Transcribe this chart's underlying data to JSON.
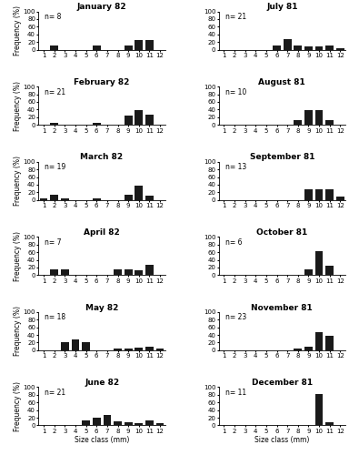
{
  "panels": [
    {
      "title": "January 82",
      "n": 8,
      "values": [
        0,
        12,
        0,
        0,
        0,
        12,
        0,
        0,
        12,
        25,
        25,
        0
      ]
    },
    {
      "title": "July 81",
      "n": 21,
      "values": [
        0,
        0,
        0,
        0,
        0,
        12,
        28,
        12,
        10,
        8,
        12,
        5
      ]
    },
    {
      "title": "February 82",
      "n": 21,
      "values": [
        0,
        5,
        0,
        0,
        0,
        5,
        0,
        0,
        25,
        38,
        28,
        0
      ]
    },
    {
      "title": "August 81",
      "n": 10,
      "values": [
        0,
        0,
        0,
        0,
        0,
        0,
        0,
        12,
        38,
        38,
        12,
        0
      ]
    },
    {
      "title": "March 82",
      "n": 19,
      "values": [
        5,
        15,
        5,
        0,
        0,
        5,
        0,
        0,
        15,
        38,
        12,
        0
      ]
    },
    {
      "title": "September 81",
      "n": 13,
      "values": [
        0,
        0,
        0,
        0,
        0,
        0,
        0,
        0,
        28,
        28,
        28,
        10
      ]
    },
    {
      "title": "April 82",
      "n": 7,
      "values": [
        0,
        15,
        15,
        0,
        0,
        0,
        0,
        15,
        15,
        12,
        28,
        0
      ]
    },
    {
      "title": "October 81",
      "n": 6,
      "values": [
        0,
        0,
        0,
        0,
        0,
        0,
        0,
        0,
        15,
        62,
        25,
        0
      ]
    },
    {
      "title": "May 82",
      "n": 18,
      "values": [
        0,
        0,
        22,
        28,
        22,
        0,
        0,
        5,
        5,
        8,
        10,
        5
      ]
    },
    {
      "title": "November 81",
      "n": 23,
      "values": [
        0,
        0,
        0,
        0,
        0,
        0,
        0,
        5,
        9,
        48,
        38,
        0
      ]
    },
    {
      "title": "June 82",
      "n": 21,
      "values": [
        0,
        0,
        0,
        0,
        12,
        20,
        28,
        10,
        8,
        5,
        12,
        5
      ]
    },
    {
      "title": "December 81",
      "n": 11,
      "values": [
        0,
        0,
        0,
        0,
        0,
        0,
        0,
        0,
        0,
        82,
        9,
        0
      ]
    }
  ],
  "x_labels": [
    1,
    2,
    3,
    4,
    5,
    6,
    7,
    8,
    9,
    10,
    11,
    12
  ],
  "y_ticks": [
    0,
    20,
    40,
    60,
    80,
    100
  ],
  "bar_color": "#1a1a1a",
  "xlabel": "Size class (mm)",
  "ylabel": "Frequency (%)",
  "title_fontsize": 6.5,
  "label_fontsize": 5.5,
  "tick_fontsize": 5,
  "n_fontsize": 5.5
}
